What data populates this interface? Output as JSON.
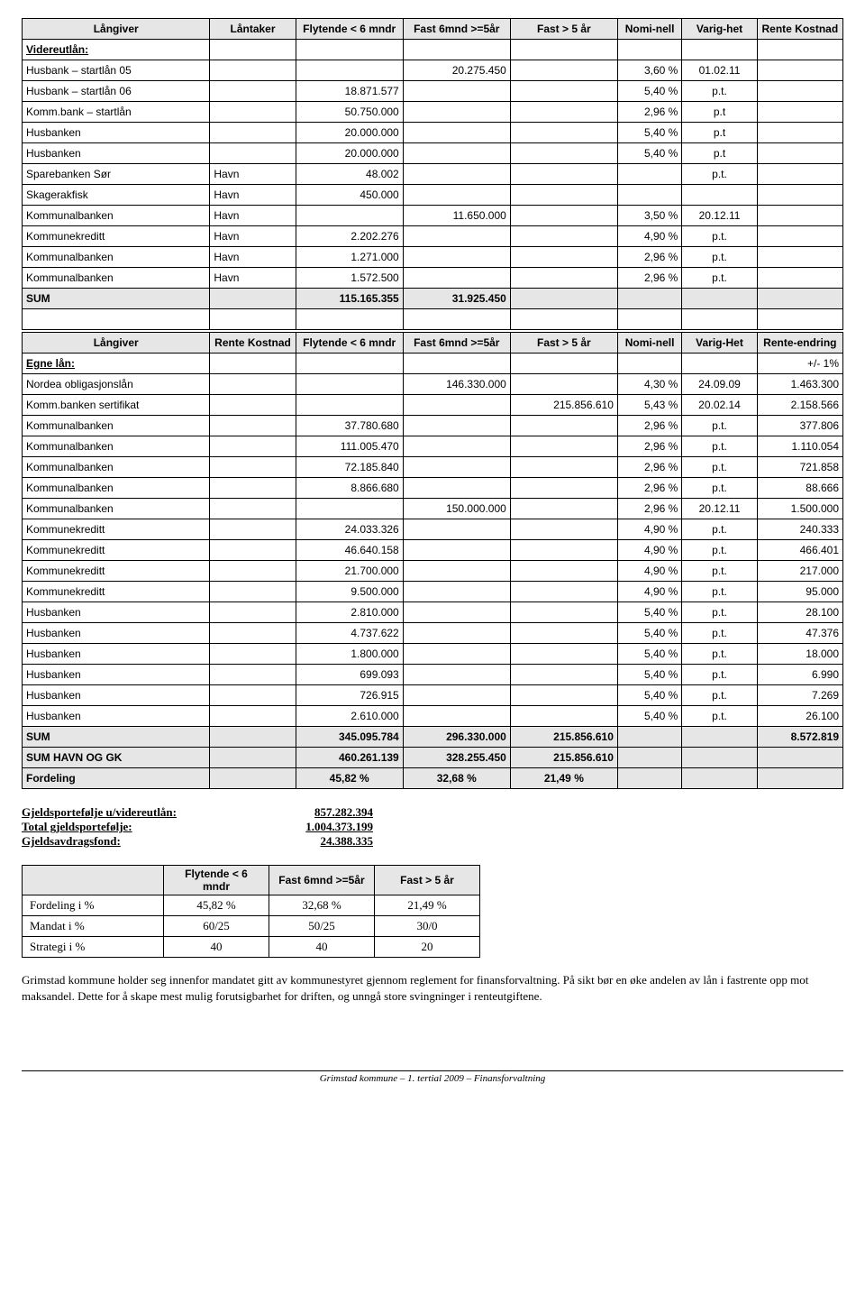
{
  "table1": {
    "headers": [
      "Långiver",
      "Låntaker",
      "Flytende < 6 mndr",
      "Fast 6mnd >=5år",
      "Fast > 5 år",
      "Nomi-nell",
      "Varig-het",
      "Rente Kostnad"
    ],
    "section_label": "Videreutlån:",
    "rows": [
      [
        "Husbank – startlån 05",
        "",
        "",
        "20.275.450",
        "",
        "3,60 %",
        "01.02.11",
        ""
      ],
      [
        "Husbank – startlån 06",
        "",
        "18.871.577",
        "",
        "",
        "5,40 %",
        "p.t.",
        ""
      ],
      [
        "Komm.bank – startlån",
        "",
        "50.750.000",
        "",
        "",
        "2,96 %",
        "p.t",
        ""
      ],
      [
        "Husbanken",
        "",
        "20.000.000",
        "",
        "",
        "5,40 %",
        "p.t",
        ""
      ],
      [
        "Husbanken",
        "",
        "20.000.000",
        "",
        "",
        "5,40 %",
        "p.t",
        ""
      ],
      [
        "Sparebanken Sør",
        "Havn",
        "48.002",
        "",
        "",
        "",
        "p.t.",
        ""
      ],
      [
        "Skagerakfisk",
        "Havn",
        "450.000",
        "",
        "",
        "",
        "",
        ""
      ],
      [
        "Kommunalbanken",
        "Havn",
        "",
        "11.650.000",
        "",
        "3,50 %",
        "20.12.11",
        ""
      ],
      [
        "Kommunekreditt",
        "Havn",
        "2.202.276",
        "",
        "",
        "4,90 %",
        "p.t.",
        ""
      ],
      [
        "Kommunalbanken",
        "Havn",
        "1.271.000",
        "",
        "",
        "2,96 %",
        "p.t.",
        ""
      ],
      [
        "Kommunalbanken",
        "Havn",
        "1.572.500",
        "",
        "",
        "2,96 %",
        "p.t.",
        ""
      ]
    ],
    "sum": [
      "SUM",
      "",
      "115.165.355",
      "31.925.450",
      "",
      "",
      "",
      ""
    ]
  },
  "table2": {
    "headers": [
      "Långiver",
      "Rente Kostnad",
      "Flytende < 6 mndr",
      "Fast 6mnd >=5år",
      "Fast > 5 år",
      "Nomi-nell",
      "Varig-Het",
      "Rente-endring"
    ],
    "section_label": "Egne lån:",
    "section_right": "+/- 1%",
    "rows": [
      [
        "Nordea obligasjonslån",
        "",
        "",
        "146.330.000",
        "",
        "4,30 %",
        "24.09.09",
        "1.463.300"
      ],
      [
        "Komm.banken sertifikat",
        "",
        "",
        "",
        "215.856.610",
        "5,43 %",
        "20.02.14",
        "2.158.566"
      ],
      [
        "Kommunalbanken",
        "",
        "37.780.680",
        "",
        "",
        "2,96 %",
        "p.t.",
        "377.806"
      ],
      [
        "Kommunalbanken",
        "",
        "111.005.470",
        "",
        "",
        "2,96 %",
        "p.t.",
        "1.110.054"
      ],
      [
        "Kommunalbanken",
        "",
        "72.185.840",
        "",
        "",
        "2,96 %",
        "p.t.",
        "721.858"
      ],
      [
        "Kommunalbanken",
        "",
        "8.866.680",
        "",
        "",
        "2,96 %",
        "p.t.",
        "88.666"
      ],
      [
        "Kommunalbanken",
        "",
        "",
        "150.000.000",
        "",
        "2,96 %",
        "20.12.11",
        "1.500.000"
      ],
      [
        "Kommunekreditt",
        "",
        "24.033.326",
        "",
        "",
        "4,90 %",
        "p.t.",
        "240.333"
      ],
      [
        "Kommunekreditt",
        "",
        "46.640.158",
        "",
        "",
        "4,90 %",
        "p.t.",
        "466.401"
      ],
      [
        "Kommunekreditt",
        "",
        "21.700.000",
        "",
        "",
        "4,90 %",
        "p.t.",
        "217.000"
      ],
      [
        "Kommunekreditt",
        "",
        "9.500.000",
        "",
        "",
        "4,90 %",
        "p.t.",
        "95.000"
      ],
      [
        "Husbanken",
        "",
        "2.810.000",
        "",
        "",
        "5,40 %",
        "p.t.",
        "28.100"
      ],
      [
        "Husbanken",
        "",
        "4.737.622",
        "",
        "",
        "5,40 %",
        "p.t.",
        "47.376"
      ],
      [
        "Husbanken",
        "",
        "1.800.000",
        "",
        "",
        "5,40 %",
        "p.t.",
        "18.000"
      ],
      [
        "Husbanken",
        "",
        "699.093",
        "",
        "",
        "5,40 %",
        "p.t.",
        "6.990"
      ],
      [
        "Husbanken",
        "",
        "726.915",
        "",
        "",
        "5,40 %",
        "p.t.",
        "7.269"
      ],
      [
        "Husbanken",
        "",
        "2.610.000",
        "",
        "",
        "5,40 %",
        "p.t.",
        "26.100"
      ]
    ],
    "sums": [
      [
        "SUM",
        "",
        "345.095.784",
        "296.330.000",
        "215.856.610",
        "",
        "",
        "8.572.819"
      ],
      [
        "SUM HAVN OG GK",
        "",
        "460.261.139",
        "328.255.450",
        "215.856.610",
        "",
        "",
        ""
      ],
      [
        "Fordeling",
        "",
        "45,82 %",
        "32,68 %",
        "21,49 %",
        "",
        "",
        ""
      ]
    ]
  },
  "summary": [
    [
      "Gjeldsportefølje u/videreutlån:",
      "857.282.394"
    ],
    [
      "Total gjeldsportefølje:",
      "1.004.373.199"
    ],
    [
      "Gjeldsavdragsfond:",
      "24.388.335"
    ]
  ],
  "share_table": {
    "headers": [
      "",
      "Flytende < 6 mndr",
      "Fast 6mnd >=5år",
      "Fast > 5 år"
    ],
    "rows": [
      [
        "Fordeling i %",
        "45,82 %",
        "32,68 %",
        "21,49 %"
      ],
      [
        "Mandat i %",
        "60/25",
        "50/25",
        "30/0"
      ],
      [
        "Strategi i %",
        "40",
        "40",
        "20"
      ]
    ]
  },
  "paragraph": "Grimstad kommune holder seg innenfor mandatet gitt av kommunestyret gjennom reglement for finansforvaltning. På sikt bør en øke andelen av lån i fastrente opp mot maksandel. Dette for å skape mest mulig forutsigbarhet for driften, og unngå store svingninger i renteutgiftene.",
  "footer": "Grimstad kommune – 1. tertial 2009 – Finansforvaltning"
}
